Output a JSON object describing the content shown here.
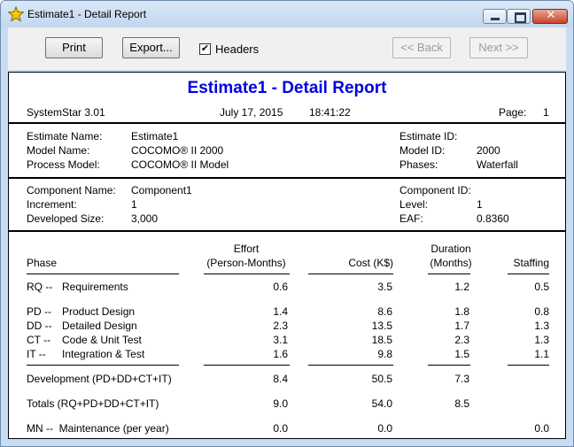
{
  "window": {
    "title": "Estimate1 - Detail Report"
  },
  "toolbar": {
    "print": "Print",
    "export": "Export...",
    "headers_label": "Headers",
    "headers_checked": "✔",
    "back": "<< Back",
    "next": "Next >>"
  },
  "report": {
    "title": "Estimate1 - Detail Report",
    "app_version": "SystemStar 3.01",
    "date": "July 17, 2015",
    "time": "18:41:22",
    "page_label": "Page:",
    "page_value": "1"
  },
  "estimate_info": {
    "estimate_name_label": "Estimate Name:",
    "estimate_name": "Estimate1",
    "model_name_label": "Model Name:",
    "model_name": "COCOMO® II 2000",
    "process_model_label": "Process Model:",
    "process_model": "COCOMO® II Model",
    "estimate_id_label": "Estimate ID:",
    "estimate_id": "",
    "model_id_label": "Model ID:",
    "model_id": "2000",
    "phases_label": "Phases:",
    "phases": "Waterfall"
  },
  "component_info": {
    "component_name_label": "Component Name:",
    "component_name": "Component1",
    "increment_label": "Increment:",
    "increment": "1",
    "developed_size_label": "Developed Size:",
    "developed_size": "3,000",
    "component_id_label": "Component ID:",
    "component_id": "",
    "level_label": "Level:",
    "level": "1",
    "eaf_label": "EAF:",
    "eaf": "0.8360"
  },
  "table": {
    "headers": {
      "phase": "Phase",
      "effort_1": "Effort",
      "effort_2": "(Person-Months)",
      "cost": "Cost (K$)",
      "duration_1": "Duration",
      "duration_2": "(Months)",
      "staffing": "Staffing"
    },
    "rows": [
      {
        "code": "RQ --",
        "name": "Requirements",
        "effort": "0.6",
        "cost": "3.5",
        "duration": "1.2",
        "staffing": "0.5"
      },
      {
        "code": "PD --",
        "name": "Product Design",
        "effort": "1.4",
        "cost": "8.6",
        "duration": "1.8",
        "staffing": "0.8"
      },
      {
        "code": "DD --",
        "name": "Detailed Design",
        "effort": "2.3",
        "cost": "13.5",
        "duration": "1.7",
        "staffing": "1.3"
      },
      {
        "code": "CT --",
        "name": "Code & Unit Test",
        "effort": "3.1",
        "cost": "18.5",
        "duration": "2.3",
        "staffing": "1.3"
      },
      {
        "code": "IT --",
        "name": "Integration & Test",
        "effort": "1.6",
        "cost": "9.8",
        "duration": "1.5",
        "staffing": "1.1"
      }
    ],
    "development": {
      "label": "Development (PD+DD+CT+IT)",
      "effort": "8.4",
      "cost": "50.5",
      "duration": "7.3"
    },
    "totals": {
      "label": "Totals (RQ+PD+DD+CT+IT)",
      "effort": "9.0",
      "cost": "54.0",
      "duration": "8.5"
    },
    "maintenance": {
      "label": "MN --  Maintenance (per year)",
      "effort": "0.0",
      "cost": "0.0",
      "staffing": "0.0"
    }
  }
}
